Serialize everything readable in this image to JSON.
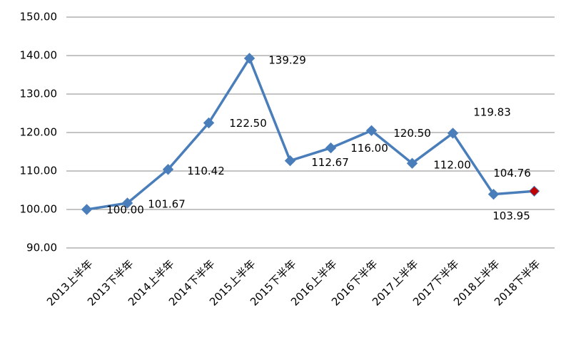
{
  "chart_data": {
    "type": "line",
    "categories": [
      "2013上半年",
      "2013下半年",
      "2014上半年",
      "2014下半年",
      "2015上半年",
      "2015下半年",
      "2016上半年",
      "2016下半年",
      "2017上半年",
      "2017下半年",
      "2018上半年",
      "2018下半年"
    ],
    "values": [
      100.0,
      101.67,
      110.42,
      122.5,
      139.29,
      112.67,
      116.0,
      120.5,
      112.0,
      119.83,
      103.95,
      104.76
    ],
    "value_labels": [
      "100.00",
      "101.67",
      "110.42",
      "122.50",
      "139.29",
      "112.67",
      "116.00",
      "120.50",
      "112.00",
      "119.83",
      "103.95",
      "104.76"
    ],
    "color": "#4a7ebb",
    "marker_colors": [
      "#4a7ebb",
      "#4a7ebb",
      "#4a7ebb",
      "#4a7ebb",
      "#4a7ebb",
      "#4a7ebb",
      "#4a7ebb",
      "#4a7ebb",
      "#4a7ebb",
      "#4a7ebb",
      "#4a7ebb",
      "#c00000"
    ],
    "ylim": [
      90,
      150
    ],
    "yticks": [
      {
        "value": 90,
        "label": "90.00"
      },
      {
        "value": 100,
        "label": "100.00"
      },
      {
        "value": 110,
        "label": "110.00"
      },
      {
        "value": 120,
        "label": "120.00"
      },
      {
        "value": 130,
        "label": "130.00"
      },
      {
        "value": 140,
        "label": "140.00"
      },
      {
        "value": 150,
        "label": "150.00"
      }
    ],
    "grid": true
  }
}
